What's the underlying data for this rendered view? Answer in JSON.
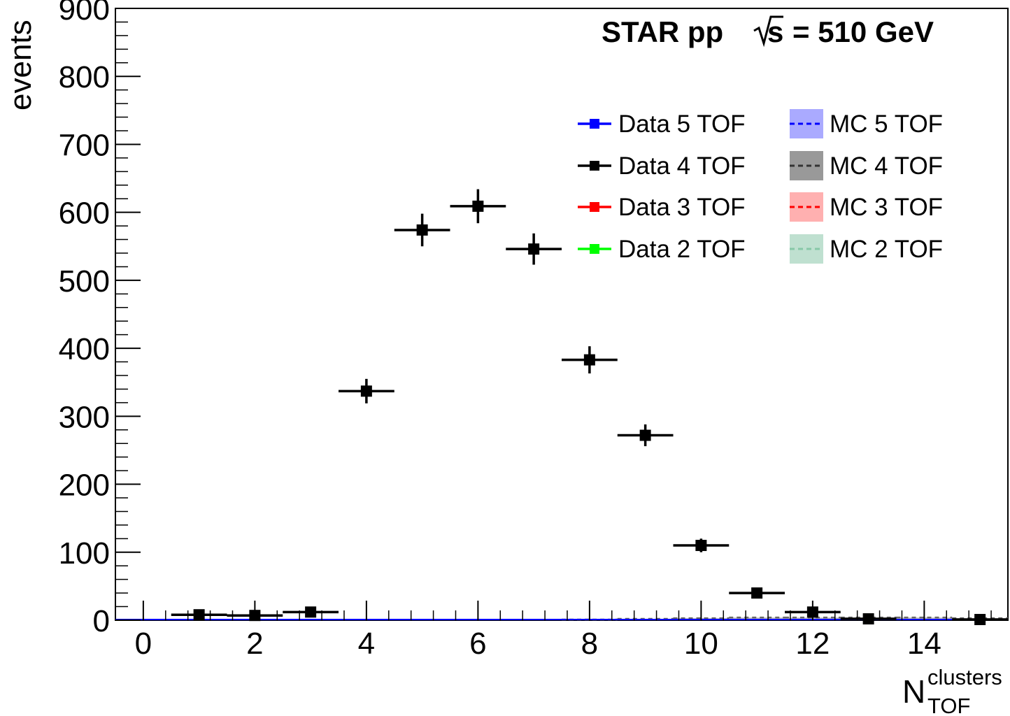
{
  "chart_data": {
    "type": "scatter",
    "title": "STAR pp",
    "title_energy_symbol": "s",
    "title_energy_value": "= 510 GeV",
    "ylabel": "events",
    "xlabel_main": "N",
    "xlabel_superscript": "clusters",
    "xlabel_subscript": "TOF",
    "xlim": [
      -0.5,
      15.5
    ],
    "ylim": [
      0,
      900
    ],
    "x_ticks": [
      "0",
      "2",
      "4",
      "6",
      "8",
      "10",
      "12",
      "14"
    ],
    "y_ticks": [
      "0",
      "100",
      "200",
      "300",
      "400",
      "500",
      "600",
      "700",
      "800",
      "900"
    ],
    "series": [
      {
        "name": "Data 4 TOF",
        "color": "#000000",
        "style": "points-with-errors",
        "x": [
          1,
          2,
          3,
          4,
          5,
          6,
          7,
          8,
          9,
          10,
          11,
          12,
          13,
          15
        ],
        "y": [
          8,
          7,
          12,
          337,
          574,
          609,
          546,
          383,
          272,
          110,
          40,
          12,
          2,
          1
        ],
        "yerr": [
          3,
          3,
          4,
          18,
          24,
          25,
          23,
          20,
          16,
          10,
          6,
          4,
          1.5,
          1
        ]
      },
      {
        "name": "Data 5 TOF",
        "color": "#0000ff",
        "style": "points-with-errors",
        "x": [
          0,
          15
        ],
        "y": [
          0,
          0
        ],
        "yerr": [
          0,
          0
        ]
      },
      {
        "name": "MC 4 TOF",
        "color": "#666666",
        "fill": "#999999",
        "style": "dashed-band",
        "x": [
          8,
          9,
          10,
          11,
          12,
          13,
          14,
          15
        ],
        "y": [
          1,
          2,
          3,
          4,
          4,
          4,
          4,
          3
        ]
      }
    ],
    "legend": {
      "placement": "top-right",
      "entries": [
        {
          "label": "Data 5 TOF",
          "kind": "data",
          "color": "#0000ff"
        },
        {
          "label": "MC 5 TOF",
          "kind": "mc",
          "color": "#0000ff",
          "fill": "#aaaaff"
        },
        {
          "label": "Data 4 TOF",
          "kind": "data",
          "color": "#000000"
        },
        {
          "label": "MC 4 TOF",
          "kind": "mc",
          "color": "#333333",
          "fill": "#999999"
        },
        {
          "label": "Data 3 TOF",
          "kind": "data",
          "color": "#ff0000"
        },
        {
          "label": "MC 3 TOF",
          "kind": "mc",
          "color": "#ff0000",
          "fill": "#ffb0b0"
        },
        {
          "label": "Data 2 TOF",
          "kind": "data",
          "color": "#00ff00"
        },
        {
          "label": "MC 2 TOF",
          "kind": "mc",
          "color": "#88c8a8",
          "fill": "#bfe0d0"
        }
      ]
    },
    "grid": false
  }
}
